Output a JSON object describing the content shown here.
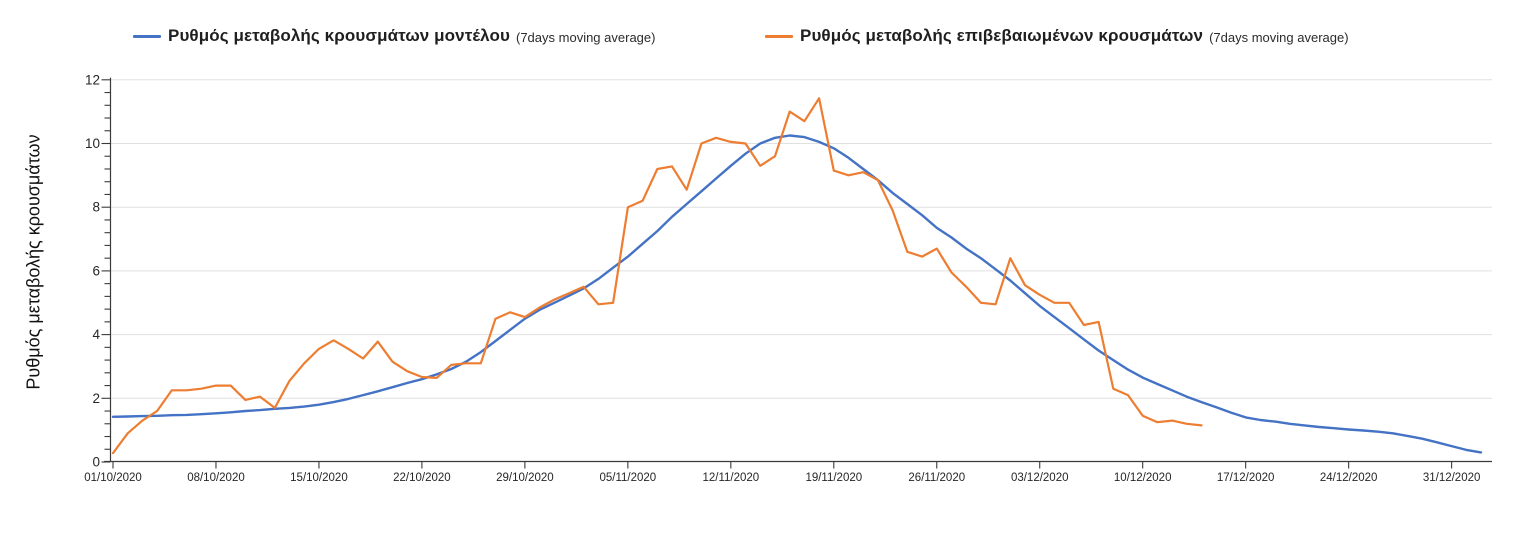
{
  "legend": {
    "items": [
      {
        "label": "Ρυθμός μεταβολής κρουσμάτων μοντέλου",
        "suffix": "(7days moving average)",
        "color": "#4472C4"
      },
      {
        "label": "Ρυθμός μεταβολής επιβεβαιωμένων κρουσμάτων",
        "suffix": "(7days moving average)",
        "color": "#ED7D31"
      }
    ]
  },
  "y_axis": {
    "title": "Ρυθμός μεταβολής κρουσμάτων",
    "tick_labels": [
      "0",
      "2",
      "4",
      "6",
      "8",
      "10",
      "12"
    ],
    "tick_values": [
      0,
      2,
      4,
      6,
      8,
      10,
      12
    ],
    "min": 0,
    "max": 12
  },
  "x_axis": {
    "tick_labels": [
      "01/10/2020",
      "08/10/2020",
      "15/10/2020",
      "22/10/2020",
      "29/10/2020",
      "05/11/2020",
      "12/11/2020",
      "19/11/2020",
      "26/11/2020",
      "03/12/2020",
      "10/12/2020",
      "17/12/2020",
      "24/12/2020",
      "31/12/2020"
    ]
  },
  "colors": {
    "model_line": "#4472C4",
    "confirmed_line": "#ED7D31",
    "gridline": "#E0E0E0",
    "axis": "#3a3a3a",
    "tick_text": "#262626"
  },
  "chart_data": {
    "type": "line",
    "title": "",
    "xlabel": "",
    "ylabel": "Ρυθμός μεταβολής κρουσμάτων",
    "ylim": [
      0,
      12
    ],
    "grid": "horizontal every 2 units",
    "legend_position": "top",
    "x": [
      "01/10/2020",
      "02/10/2020",
      "03/10/2020",
      "04/10/2020",
      "05/10/2020",
      "06/10/2020",
      "07/10/2020",
      "08/10/2020",
      "09/10/2020",
      "10/10/2020",
      "11/10/2020",
      "12/10/2020",
      "13/10/2020",
      "14/10/2020",
      "15/10/2020",
      "16/10/2020",
      "17/10/2020",
      "18/10/2020",
      "19/10/2020",
      "20/10/2020",
      "21/10/2020",
      "22/10/2020",
      "23/10/2020",
      "24/10/2020",
      "25/10/2020",
      "26/10/2020",
      "27/10/2020",
      "28/10/2020",
      "29/10/2020",
      "30/10/2020",
      "31/10/2020",
      "01/11/2020",
      "02/11/2020",
      "03/11/2020",
      "04/11/2020",
      "05/11/2020",
      "06/11/2020",
      "07/11/2020",
      "08/11/2020",
      "09/11/2020",
      "10/11/2020",
      "11/11/2020",
      "12/11/2020",
      "13/11/2020",
      "14/11/2020",
      "15/11/2020",
      "16/11/2020",
      "17/11/2020",
      "18/11/2020",
      "19/11/2020",
      "20/11/2020",
      "21/11/2020",
      "22/11/2020",
      "23/11/2020",
      "24/11/2020",
      "25/11/2020",
      "26/11/2020",
      "27/11/2020",
      "28/11/2020",
      "29/11/2020",
      "30/11/2020",
      "01/12/2020",
      "02/12/2020",
      "03/12/2020",
      "04/12/2020",
      "05/12/2020",
      "06/12/2020",
      "07/12/2020",
      "08/12/2020",
      "09/12/2020",
      "10/12/2020",
      "11/12/2020",
      "12/12/2020",
      "13/12/2020",
      "14/12/2020",
      "15/12/2020",
      "16/12/2020",
      "17/12/2020",
      "18/12/2020",
      "19/12/2020",
      "20/12/2020",
      "21/12/2020",
      "22/12/2020",
      "23/12/2020",
      "24/12/2020",
      "25/12/2020",
      "26/12/2020",
      "27/12/2020",
      "28/12/2020",
      "29/12/2020",
      "30/12/2020",
      "31/12/2020",
      "01/01/2021",
      "02/01/2021"
    ],
    "series": [
      {
        "name": "Ρυθμός μεταβολής κρουσμάτων μοντέλου (7days moving average)",
        "color": "#4472C4",
        "values": [
          1.42,
          1.43,
          1.44,
          1.45,
          1.47,
          1.48,
          1.5,
          1.53,
          1.56,
          1.6,
          1.63,
          1.67,
          1.7,
          1.74,
          1.8,
          1.88,
          1.98,
          2.1,
          2.22,
          2.35,
          2.48,
          2.6,
          2.75,
          2.92,
          3.15,
          3.45,
          3.8,
          4.15,
          4.5,
          4.78,
          5.0,
          5.22,
          5.45,
          5.75,
          6.1,
          6.45,
          6.85,
          7.25,
          7.7,
          8.1,
          8.5,
          8.9,
          9.3,
          9.68,
          10.0,
          10.18,
          10.25,
          10.2,
          10.05,
          9.85,
          9.55,
          9.2,
          8.85,
          8.45,
          8.1,
          7.75,
          7.35,
          7.05,
          6.7,
          6.4,
          6.05,
          5.7,
          5.3,
          4.9,
          4.55,
          4.2,
          3.85,
          3.5,
          3.2,
          2.9,
          2.65,
          2.45,
          2.25,
          2.05,
          1.88,
          1.72,
          1.55,
          1.4,
          1.32,
          1.27,
          1.2,
          1.15,
          1.1,
          1.06,
          1.02,
          0.99,
          0.95,
          0.9,
          0.82,
          0.73,
          0.62,
          0.5,
          0.38,
          0.3
        ]
      },
      {
        "name": "Ρυθμός μεταβολής επιβεβαιωμένων κρουσμάτων (7days moving average)",
        "color": "#ED7D31",
        "values": [
          0.28,
          0.9,
          1.3,
          1.6,
          2.25,
          2.25,
          2.3,
          2.4,
          2.4,
          1.95,
          2.05,
          1.7,
          2.55,
          3.1,
          3.55,
          3.82,
          3.55,
          3.25,
          3.78,
          3.15,
          2.85,
          2.67,
          2.64,
          3.05,
          3.1,
          3.1,
          4.5,
          4.7,
          4.55,
          4.85,
          5.1,
          5.3,
          5.5,
          4.95,
          5.0,
          8.0,
          8.2,
          9.2,
          9.28,
          8.55,
          10.0,
          10.18,
          10.05,
          10.0,
          9.3,
          9.6,
          11.0,
          10.7,
          11.42,
          9.15,
          9.0,
          9.1,
          8.85,
          7.9,
          6.6,
          6.45,
          6.7,
          5.95,
          5.5,
          5.0,
          4.95,
          6.4,
          5.55,
          5.25,
          5.0,
          5.0,
          4.3,
          4.4,
          2.3,
          2.1,
          1.45,
          1.25,
          1.3,
          1.2,
          1.15
        ]
      }
    ]
  }
}
